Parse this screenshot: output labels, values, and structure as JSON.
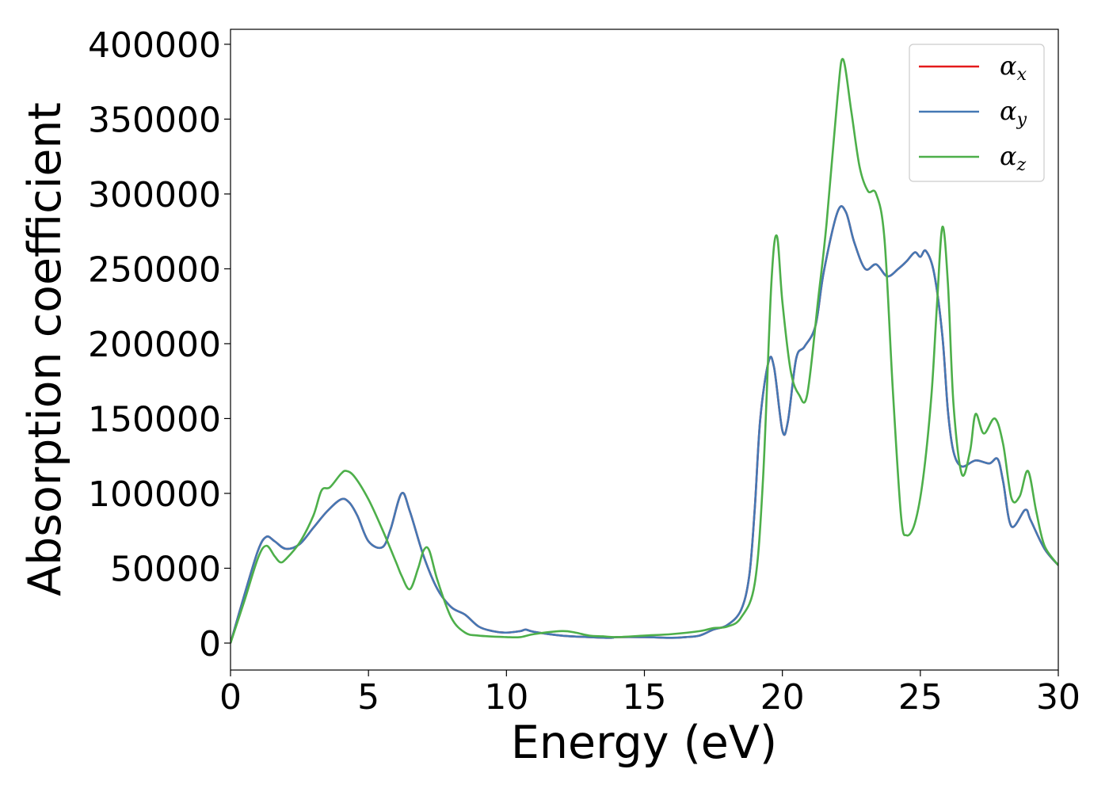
{
  "chart_data": {
    "type": "line",
    "xlabel": "Energy (eV)",
    "ylabel": "Absorption coefficient",
    "xlim": [
      0,
      30
    ],
    "ylim": [
      -18000,
      410000
    ],
    "xticks": [
      0,
      5,
      10,
      15,
      20,
      25,
      30
    ],
    "xtick_labels": [
      "0",
      "5",
      "10",
      "15",
      "20",
      "25",
      "30"
    ],
    "yticks": [
      0,
      50000,
      100000,
      150000,
      200000,
      250000,
      300000,
      350000,
      400000
    ],
    "ytick_labels": [
      "0",
      "50000",
      "100000",
      "150000",
      "200000",
      "250000",
      "300000",
      "350000",
      "400000"
    ],
    "grid": false,
    "legend": "top-right",
    "series": [
      {
        "name": "α",
        "subscript": "x",
        "color": "#e41a1c",
        "x": [
          0,
          0.5,
          1,
          1.3,
          1.6,
          2,
          2.5,
          3,
          3.5,
          4,
          4.3,
          4.6,
          5,
          5.5,
          5.8,
          6.2,
          6.5,
          7,
          7.5,
          8,
          8.5,
          9,
          9.5,
          10,
          10.5,
          10.7,
          11,
          12,
          13,
          13.8,
          14,
          15,
          16,
          16.5,
          17,
          17.5,
          18,
          18.5,
          18.8,
          19,
          19.2,
          19.5,
          19.7,
          20,
          20.2,
          20.5,
          20.8,
          21.2,
          21.5,
          22,
          22.3,
          22.6,
          23,
          23.4,
          23.8,
          24.2,
          24.5,
          24.8,
          25,
          25.2,
          25.5,
          25.8,
          26,
          26.2,
          26.5,
          27,
          27.5,
          27.8,
          28,
          28.3,
          28.8,
          29,
          29.5,
          30
        ],
        "values": [
          0,
          32000,
          62000,
          71000,
          68000,
          63000,
          66000,
          77000,
          88000,
          96000,
          94000,
          85000,
          68000,
          64000,
          76000,
          100000,
          88000,
          58000,
          36000,
          24000,
          19000,
          11000,
          8000,
          7000,
          8000,
          9000,
          7500,
          5000,
          4000,
          3500,
          4000,
          4000,
          3500,
          4000,
          5000,
          9000,
          12000,
          22000,
          45000,
          90000,
          150000,
          188000,
          184000,
          142000,
          148000,
          190000,
          198000,
          212000,
          248000,
          288000,
          288000,
          268000,
          250000,
          253000,
          245000,
          250000,
          255000,
          261000,
          258000,
          262000,
          247000,
          205000,
          155000,
          128000,
          118000,
          122000,
          120000,
          123000,
          108000,
          78000,
          89000,
          82000,
          63000,
          52000
        ]
      },
      {
        "name": "α",
        "subscript": "y",
        "color": "#4478b4",
        "x": [
          0,
          0.5,
          1,
          1.3,
          1.6,
          2,
          2.5,
          3,
          3.5,
          4,
          4.3,
          4.6,
          5,
          5.5,
          5.8,
          6.2,
          6.5,
          7,
          7.5,
          8,
          8.5,
          9,
          9.5,
          10,
          10.5,
          10.7,
          11,
          12,
          13,
          13.8,
          14,
          15,
          16,
          16.5,
          17,
          17.5,
          18,
          18.5,
          18.8,
          19,
          19.2,
          19.5,
          19.7,
          20,
          20.2,
          20.5,
          20.8,
          21.2,
          21.5,
          22,
          22.3,
          22.6,
          23,
          23.4,
          23.8,
          24.2,
          24.5,
          24.8,
          25,
          25.2,
          25.5,
          25.8,
          26,
          26.2,
          26.5,
          27,
          27.5,
          27.8,
          28,
          28.3,
          28.8,
          29,
          29.5,
          30
        ],
        "values": [
          0,
          32000,
          62000,
          71000,
          68000,
          63000,
          66000,
          77000,
          88000,
          96000,
          94000,
          85000,
          68000,
          64000,
          76000,
          100000,
          88000,
          58000,
          36000,
          24000,
          19000,
          11000,
          8000,
          7000,
          8000,
          9000,
          7500,
          5000,
          4000,
          3500,
          4000,
          4000,
          3500,
          4000,
          5000,
          9000,
          12000,
          22000,
          45000,
          90000,
          150000,
          188000,
          184000,
          142000,
          148000,
          190000,
          198000,
          212000,
          248000,
          288000,
          288000,
          268000,
          250000,
          253000,
          245000,
          250000,
          255000,
          261000,
          258000,
          262000,
          247000,
          205000,
          155000,
          128000,
          118000,
          122000,
          120000,
          123000,
          108000,
          78000,
          89000,
          82000,
          63000,
          52000
        ]
      },
      {
        "name": "α",
        "subscript": "z",
        "color": "#4daf4a",
        "x": [
          0,
          0.5,
          1,
          1.3,
          1.6,
          1.8,
          2,
          2.5,
          3,
          3.3,
          3.6,
          4,
          4.2,
          4.5,
          5,
          5.5,
          6,
          6.2,
          6.5,
          6.8,
          7,
          7.2,
          7.5,
          8,
          8.5,
          9,
          10,
          10.5,
          11,
          12,
          12.5,
          13,
          13.5,
          14,
          15,
          16,
          17,
          17.5,
          18,
          18.5,
          19,
          19.3,
          19.6,
          19.8,
          20,
          20.3,
          20.6,
          20.9,
          21.3,
          21.6,
          22,
          22.2,
          22.5,
          22.8,
          23.1,
          23.4,
          23.7,
          24,
          24.3,
          24.5,
          24.8,
          25.1,
          25.4,
          25.6,
          25.8,
          26,
          26.2,
          26.5,
          26.8,
          27,
          27.3,
          27.7,
          28,
          28.3,
          28.6,
          28.9,
          29.2,
          29.5,
          30
        ],
        "values": [
          0,
          28000,
          57000,
          65000,
          58000,
          54000,
          56000,
          67000,
          85000,
          102000,
          104000,
          113000,
          115000,
          111000,
          96000,
          76000,
          54000,
          45000,
          36000,
          50000,
          62000,
          62000,
          42000,
          17000,
          7000,
          5000,
          4000,
          4000,
          6000,
          8000,
          7000,
          5000,
          4500,
          4000,
          5000,
          6000,
          8000,
          10000,
          11000,
          17000,
          40000,
          110000,
          240000,
          272000,
          228000,
          182000,
          166000,
          166000,
          230000,
          280000,
          365000,
          390000,
          355000,
          318000,
          302000,
          300000,
          270000,
          170000,
          85000,
          72000,
          80000,
          110000,
          165000,
          225000,
          278000,
          240000,
          160000,
          113000,
          128000,
          153000,
          140000,
          150000,
          133000,
          97000,
          98000,
          115000,
          88000,
          65000,
          52000
        ]
      }
    ]
  }
}
